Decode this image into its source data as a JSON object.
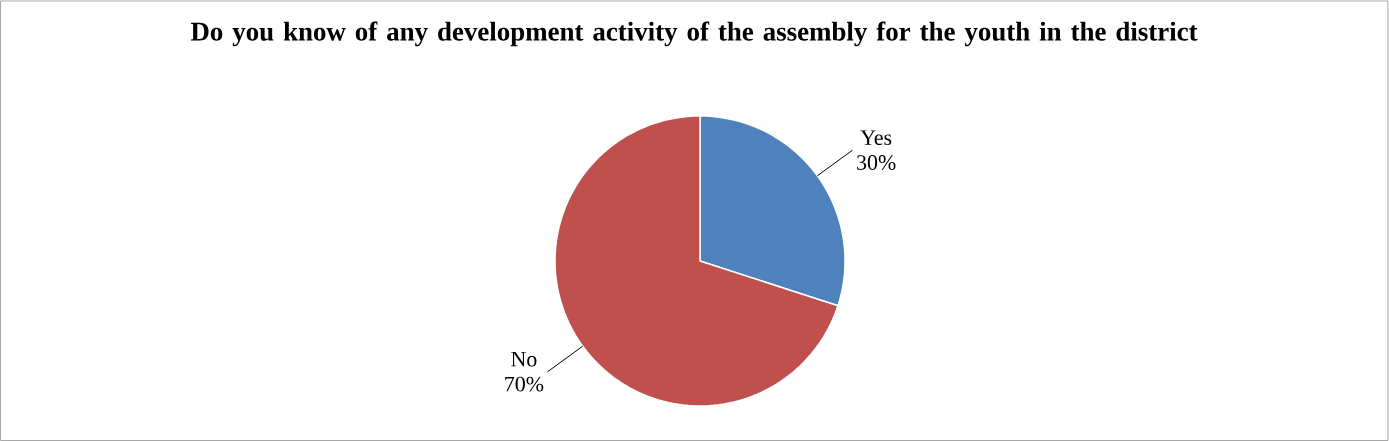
{
  "chart_data": {
    "type": "pie",
    "title": "Do you know of any development activity of the assembly for the youth in the district",
    "categories": [
      "Yes",
      "No"
    ],
    "values": [
      30,
      70
    ],
    "value_labels": [
      "30%",
      "70%"
    ],
    "colors": [
      "#4f81bd",
      "#c0504d"
    ]
  }
}
